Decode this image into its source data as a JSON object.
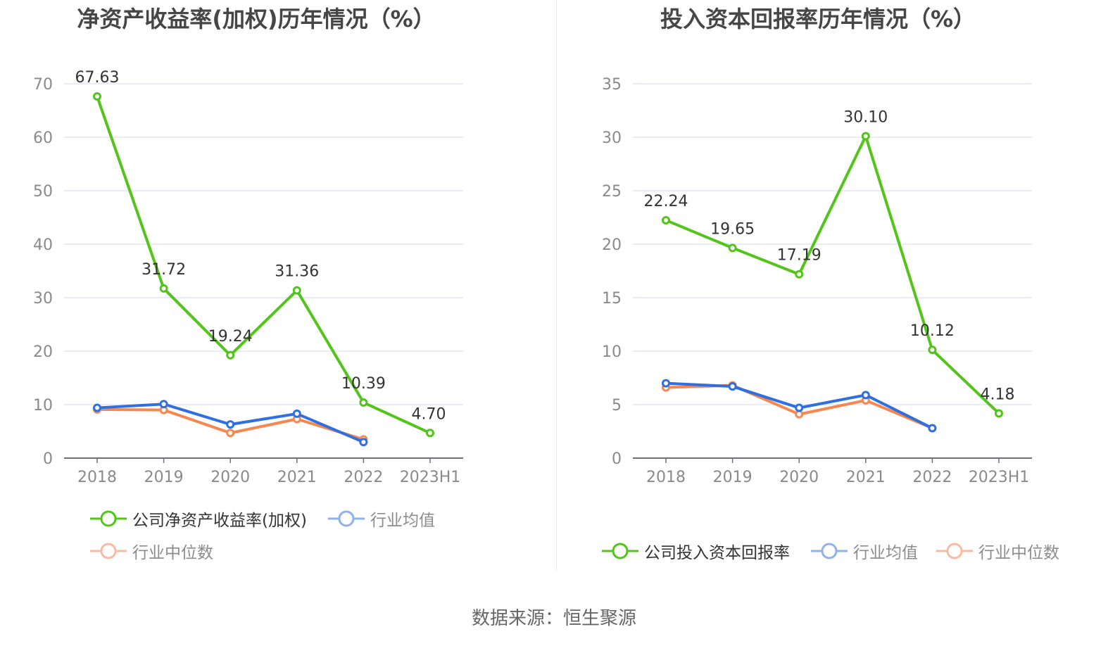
{
  "footer": {
    "source": "数据来源：恒生聚源"
  },
  "colors": {
    "company": "#52c41a",
    "industry_avg": "#2f6fdf",
    "industry_median": "#f5874f",
    "legend_avg": "#8fb2ef",
    "legend_median": "#fab9a0",
    "grid": "#e0e6f1",
    "axis": "#6e7079"
  },
  "chart_data": [
    {
      "type": "line",
      "title": "净资产收益率(加权)历年情况（%）",
      "categories": [
        "2018",
        "2019",
        "2020",
        "2021",
        "2022",
        "2023H1"
      ],
      "ylim": [
        0,
        70
      ],
      "yticks": [
        "0",
        "10",
        "20",
        "30",
        "40",
        "50",
        "60",
        "70"
      ],
      "grid": true,
      "legend_position": "bottom",
      "series": [
        {
          "name": "公司净资产收益率(加权)",
          "key": "company",
          "values": [
            67.63,
            31.72,
            19.24,
            31.36,
            10.39,
            4.7
          ],
          "labels": [
            "67.63",
            "31.72",
            "19.24",
            "31.36",
            "10.39",
            "4.70"
          ]
        },
        {
          "name": "行业均值",
          "key": "industry_avg",
          "values": [
            9.4,
            10.1,
            6.3,
            8.3,
            3.0,
            null
          ]
        },
        {
          "name": "行业中位数",
          "key": "industry_median",
          "values": [
            9.1,
            9.0,
            4.7,
            7.3,
            3.5,
            null
          ]
        }
      ]
    },
    {
      "type": "line",
      "title": "投入资本回报率历年情况（%）",
      "categories": [
        "2018",
        "2019",
        "2020",
        "2021",
        "2022",
        "2023H1"
      ],
      "ylim": [
        0,
        35
      ],
      "yticks": [
        "0",
        "5",
        "10",
        "15",
        "20",
        "25",
        "30",
        "35"
      ],
      "grid": true,
      "legend_position": "bottom",
      "series": [
        {
          "name": "公司投入资本回报率",
          "key": "company",
          "values": [
            22.24,
            19.65,
            17.19,
            30.1,
            10.12,
            4.18
          ],
          "labels": [
            "22.24",
            "19.65",
            "17.19",
            "30.10",
            "10.12",
            "4.18"
          ]
        },
        {
          "name": "行业均值",
          "key": "industry_avg",
          "values": [
            7.0,
            6.7,
            4.7,
            5.9,
            2.8,
            null
          ]
        },
        {
          "name": "行业中位数",
          "key": "industry_median",
          "values": [
            6.6,
            6.8,
            4.1,
            5.4,
            2.8,
            null
          ]
        }
      ]
    }
  ]
}
